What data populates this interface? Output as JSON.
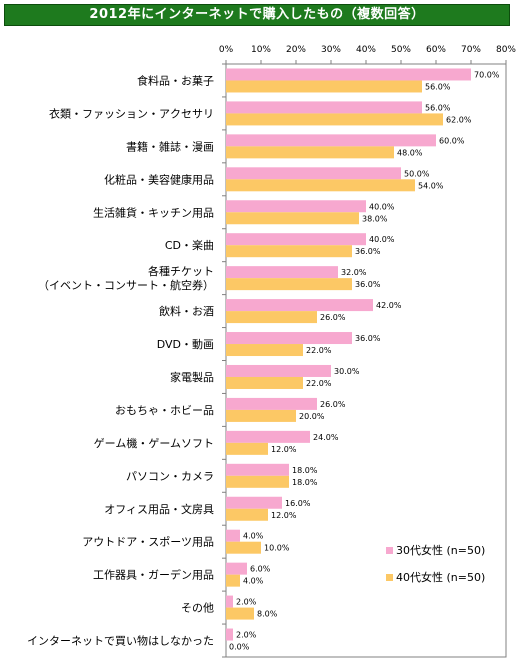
{
  "title": "2012年にインターネットで購入したもの（複数回答）",
  "colors": {
    "title_bg": "#1e7a1e",
    "series_30s": "#f7a8cf",
    "series_40s": "#fcc865"
  },
  "chart_data": {
    "type": "bar",
    "orientation": "horizontal",
    "title": "2012年にインターネットで購入したもの（複数回答）",
    "xlim": [
      0,
      80
    ],
    "x_ticks": [
      "0%",
      "10%",
      "20%",
      "30%",
      "40%",
      "50%",
      "60%",
      "70%",
      "80%"
    ],
    "grid": false,
    "legend_position": "bottom-right",
    "categories": [
      [
        "食料品・お菓子"
      ],
      [
        "衣類・ファッション・アクセサリ"
      ],
      [
        "書籍・雑誌・漫画"
      ],
      [
        "化粧品・美容健康用品"
      ],
      [
        "生活雑貨・キッチン用品"
      ],
      [
        "CD・楽曲"
      ],
      [
        "各種チケット",
        "（イベント・コンサート・航空券）"
      ],
      [
        "飲料・お酒"
      ],
      [
        "DVD・動画"
      ],
      [
        "家電製品"
      ],
      [
        "おもちゃ・ホビー品"
      ],
      [
        "ゲーム機・ゲームソフト"
      ],
      [
        "パソコン・カメラ"
      ],
      [
        "オフィス用品・文房具"
      ],
      [
        "アウトドア・スポーツ用品"
      ],
      [
        "工作器具・ガーデン用品"
      ],
      [
        "その他"
      ],
      [
        "インターネットで買い物はしなかった"
      ]
    ],
    "series": [
      {
        "name": "30代女性 (n=50)",
        "color": "#f7a8cf",
        "values": [
          70,
          56,
          60,
          50,
          40,
          40,
          32,
          42,
          36,
          30,
          26,
          24,
          18,
          16,
          4,
          6,
          2,
          2
        ],
        "labels": [
          "70.0%",
          "56.0%",
          "60.0%",
          "50.0%",
          "40.0%",
          "40.0%",
          "32.0%",
          "42.0%",
          "36.0%",
          "30.0%",
          "26.0%",
          "24.0%",
          "18.0%",
          "16.0%",
          "4.0%",
          "6.0%",
          "2.0%",
          "2.0%"
        ]
      },
      {
        "name": "40代女性 (n=50)",
        "color": "#fcc865",
        "values": [
          56,
          62,
          48,
          54,
          38,
          36,
          36,
          26,
          22,
          22,
          20,
          12,
          18,
          12,
          10,
          4,
          8,
          0
        ],
        "labels": [
          "56.0%",
          "62.0%",
          "48.0%",
          "54.0%",
          "38.0%",
          "36.0%",
          "36.0%",
          "26.0%",
          "22.0%",
          "22.0%",
          "20.0%",
          "12.0%",
          "18.0%",
          "12.0%",
          "10.0%",
          "4.0%",
          "8.0%",
          "0.0%"
        ]
      }
    ]
  }
}
